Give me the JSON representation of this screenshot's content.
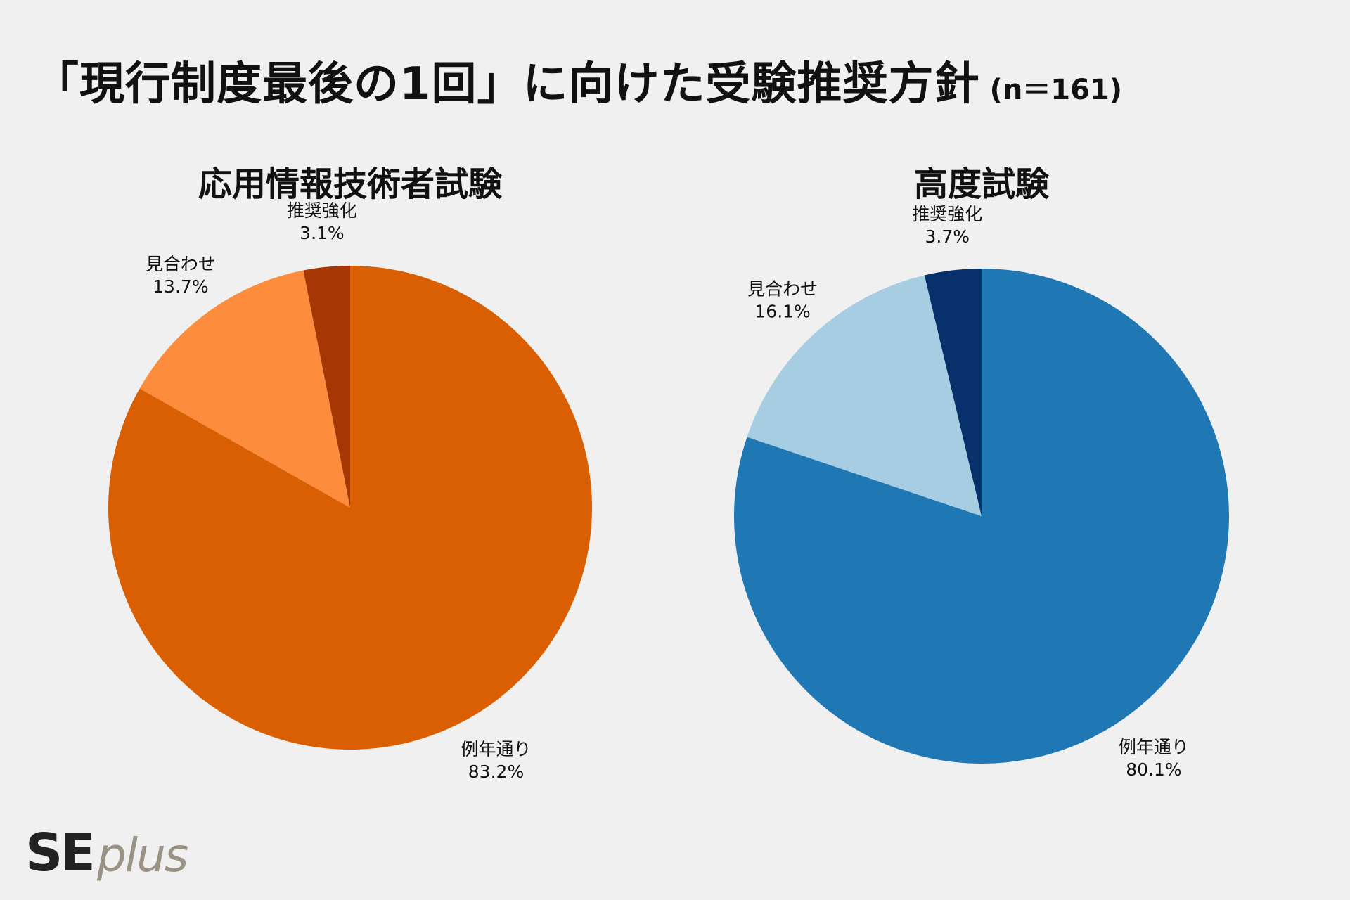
{
  "title": "「現行制度最後の1回」に向けた受験推奨方針",
  "title_n": "(n＝161)",
  "logo": {
    "se": "SE",
    "plus": "plus"
  },
  "chart_data": [
    {
      "type": "pie",
      "title": "応用情報技術者試験",
      "slices": [
        {
          "label": "例年通り",
          "value": 83.2,
          "display": "83.2%",
          "color": "#d95f02"
        },
        {
          "label": "見合わせ",
          "value": 13.7,
          "display": "13.7%",
          "color": "#fd8d3c"
        },
        {
          "label": "推奨強化",
          "value": 3.1,
          "display": "3.1%",
          "color": "#a63603"
        }
      ]
    },
    {
      "type": "pie",
      "title": "高度試験",
      "slices": [
        {
          "label": "例年通り",
          "value": 80.1,
          "display": "80.1%",
          "color": "#1f77b4"
        },
        {
          "label": "見合わせ",
          "value": 16.1,
          "display": "16.1%",
          "color": "#a6cde2"
        },
        {
          "label": "推奨強化",
          "value": 3.7,
          "display": "3.7%",
          "color": "#08306b"
        }
      ]
    }
  ]
}
